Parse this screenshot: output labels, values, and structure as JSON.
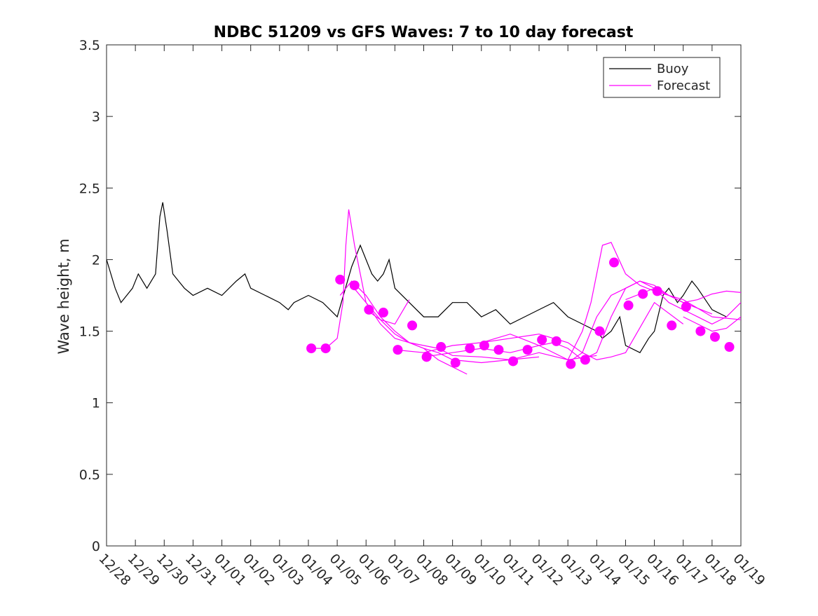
{
  "chart_data": {
    "type": "line",
    "title": "NDBC 51209 vs GFS Waves: 7 to 10 day forecast",
    "xlabel": "",
    "ylabel": "Wave height, m",
    "xlim": [
      0,
      22
    ],
    "ylim": [
      0,
      3.5
    ],
    "grid": false,
    "legend_position": "top-right",
    "x_tick_labels": [
      "12/28",
      "12/29",
      "12/30",
      "12/31",
      "01/01",
      "01/02",
      "01/03",
      "01/04",
      "01/05",
      "01/06",
      "01/07",
      "01/08",
      "01/09",
      "01/10",
      "01/11",
      "01/12",
      "01/13",
      "01/14",
      "01/15",
      "01/16",
      "01/17",
      "01/18",
      "01/19"
    ],
    "y_ticks": [
      0,
      0.5,
      1,
      1.5,
      2,
      2.5,
      3,
      3.5
    ],
    "y_tick_labels": [
      "0",
      "0.5",
      "1",
      "1.5",
      "2",
      "2.5",
      "3",
      "3.5"
    ],
    "colors": {
      "buoy": "#000000",
      "forecast": "#ff00ff"
    },
    "series": [
      {
        "name": "Buoy",
        "style": "line",
        "x": [
          0,
          0.3,
          0.5,
          0.9,
          1.1,
          1.4,
          1.7,
          1.85,
          1.95,
          2.1,
          2.3,
          2.7,
          3,
          3.5,
          4,
          4.5,
          4.8,
          5,
          5.5,
          6,
          6.3,
          6.5,
          7,
          7.5,
          8,
          8.5,
          8.8,
          9,
          9.2,
          9.4,
          9.6,
          9.8,
          10,
          10.5,
          11,
          11.5,
          12,
          12.5,
          13,
          13.5,
          14,
          14.5,
          15,
          15.5,
          16,
          16.5,
          17,
          17.2,
          17.5,
          17.8,
          18,
          18.5,
          18.8,
          19,
          19.3,
          19.5,
          19.8,
          20,
          20.3,
          20.5,
          21,
          21.5
        ],
        "y": [
          2.0,
          1.8,
          1.7,
          1.8,
          1.9,
          1.8,
          1.9,
          2.3,
          2.4,
          2.2,
          1.9,
          1.8,
          1.75,
          1.8,
          1.75,
          1.85,
          1.9,
          1.8,
          1.75,
          1.7,
          1.65,
          1.7,
          1.75,
          1.7,
          1.6,
          1.95,
          2.1,
          2.0,
          1.9,
          1.85,
          1.9,
          2.0,
          1.8,
          1.7,
          1.6,
          1.6,
          1.7,
          1.7,
          1.6,
          1.65,
          1.55,
          1.6,
          1.65,
          1.7,
          1.6,
          1.55,
          1.5,
          1.45,
          1.5,
          1.6,
          1.4,
          1.35,
          1.45,
          1.5,
          1.75,
          1.8,
          1.7,
          1.75,
          1.85,
          1.8,
          1.65,
          1.6
        ]
      },
      {
        "name": "Forecast",
        "style": "lines",
        "runs": [
          {
            "x": [
              7.1,
              7.6,
              8.0,
              8.2,
              8.3,
              8.4,
              8.6,
              9.0,
              9.5,
              10.0,
              10.5
            ],
            "y": [
              1.38,
              1.38,
              1.45,
              1.7,
              2.1,
              2.35,
              2.1,
              1.7,
              1.58,
              1.55,
              1.72
            ]
          },
          {
            "x": [
              8.1,
              8.5,
              9.0,
              9.5,
              10.0,
              10.5,
              11.0,
              11.5,
              12.5
            ],
            "y": [
              1.75,
              1.85,
              1.75,
              1.6,
              1.5,
              1.42,
              1.38,
              1.3,
              1.2
            ]
          },
          {
            "x": [
              8.5,
              9.0,
              9.5,
              10.0,
              10.5,
              11.0,
              11.5,
              12.0,
              13.0,
              14.0,
              15.0
            ],
            "y": [
              1.82,
              1.7,
              1.55,
              1.45,
              1.42,
              1.38,
              1.35,
              1.3,
              1.28,
              1.3,
              1.32
            ]
          },
          {
            "x": [
              9.0,
              9.5,
              10.0,
              10.5,
              11.0,
              11.5,
              12.0,
              13.0,
              14.0,
              15.0,
              16.0,
              17.0
            ],
            "y": [
              1.65,
              1.58,
              1.48,
              1.42,
              1.4,
              1.38,
              1.33,
              1.32,
              1.3,
              1.35,
              1.3,
              1.33
            ]
          },
          {
            "x": [
              10.0,
              11.0,
              12.0,
              13.0,
              14.0,
              15.0,
              16.0,
              16.5,
              17.0,
              17.5,
              18.0,
              19.0,
              20.0
            ],
            "y": [
              1.37,
              1.35,
              1.4,
              1.42,
              1.45,
              1.48,
              1.42,
              1.35,
              1.3,
              1.32,
              1.35,
              1.7,
              1.55
            ]
          },
          {
            "x": [
              11.0,
              12.0,
              13.0,
              14.0,
              15.0,
              15.5,
              16.0,
              16.5,
              17.0,
              17.5,
              18.0,
              18.5,
              19.0,
              20.0,
              21.0
            ],
            "y": [
              1.32,
              1.35,
              1.38,
              1.35,
              1.4,
              1.42,
              1.38,
              1.3,
              1.35,
              1.6,
              1.8,
              1.85,
              1.8,
              1.7,
              1.62
            ]
          },
          {
            "x": [
              13.0,
              13.5,
              14.0,
              14.5,
              15.0,
              16.0,
              16.5,
              16.8,
              17.0,
              17.2,
              17.5,
              18.0,
              18.5,
              19.0,
              20.0,
              21.0,
              22.0
            ],
            "y": [
              1.42,
              1.45,
              1.48,
              1.44,
              1.4,
              1.3,
              1.5,
              1.7,
              1.9,
              2.1,
              2.12,
              1.9,
              1.82,
              1.78,
              1.72,
              1.6,
              1.58
            ]
          },
          {
            "x": [
              16.0,
              16.5,
              17.0,
              17.5,
              18.0,
              18.5,
              19.0,
              19.5,
              20.0,
              20.5,
              21.0,
              21.5,
              22.0
            ],
            "y": [
              1.28,
              1.35,
              1.6,
              1.75,
              1.8,
              1.85,
              1.82,
              1.75,
              1.7,
              1.72,
              1.76,
              1.78,
              1.77
            ]
          },
          {
            "x": [
              18.0,
              18.5,
              19.0,
              19.5,
              20.0,
              20.5,
              21.0,
              21.5,
              22.0
            ],
            "y": [
              1.72,
              1.76,
              1.8,
              1.7,
              1.65,
              1.6,
              1.55,
              1.6,
              1.7
            ]
          },
          {
            "x": [
              20.0,
              20.5,
              21.0,
              21.5,
              22.0
            ],
            "y": [
              1.6,
              1.55,
              1.5,
              1.52,
              1.6
            ]
          }
        ]
      },
      {
        "name": "Forecast markers",
        "style": "markers",
        "x": [
          7.1,
          7.6,
          8.1,
          8.6,
          9.1,
          9.6,
          10.1,
          10.6,
          11.1,
          11.6,
          12.1,
          12.6,
          13.1,
          13.6,
          14.1,
          14.6,
          15.1,
          15.6,
          16.1,
          16.6,
          17.1,
          17.6,
          18.1,
          18.6,
          19.1,
          19.6,
          20.1,
          20.6,
          21.1,
          21.6
        ],
        "y": [
          1.38,
          1.38,
          1.86,
          1.82,
          1.65,
          1.63,
          1.37,
          1.54,
          1.32,
          1.39,
          1.28,
          1.38,
          1.4,
          1.37,
          1.29,
          1.37,
          1.44,
          1.43,
          1.27,
          1.3,
          1.5,
          1.98,
          1.68,
          1.76,
          1.78,
          1.54,
          1.67,
          1.5,
          1.46,
          1.39
        ]
      }
    ],
    "legend": [
      {
        "label": "Buoy"
      },
      {
        "label": "Forecast"
      }
    ]
  }
}
